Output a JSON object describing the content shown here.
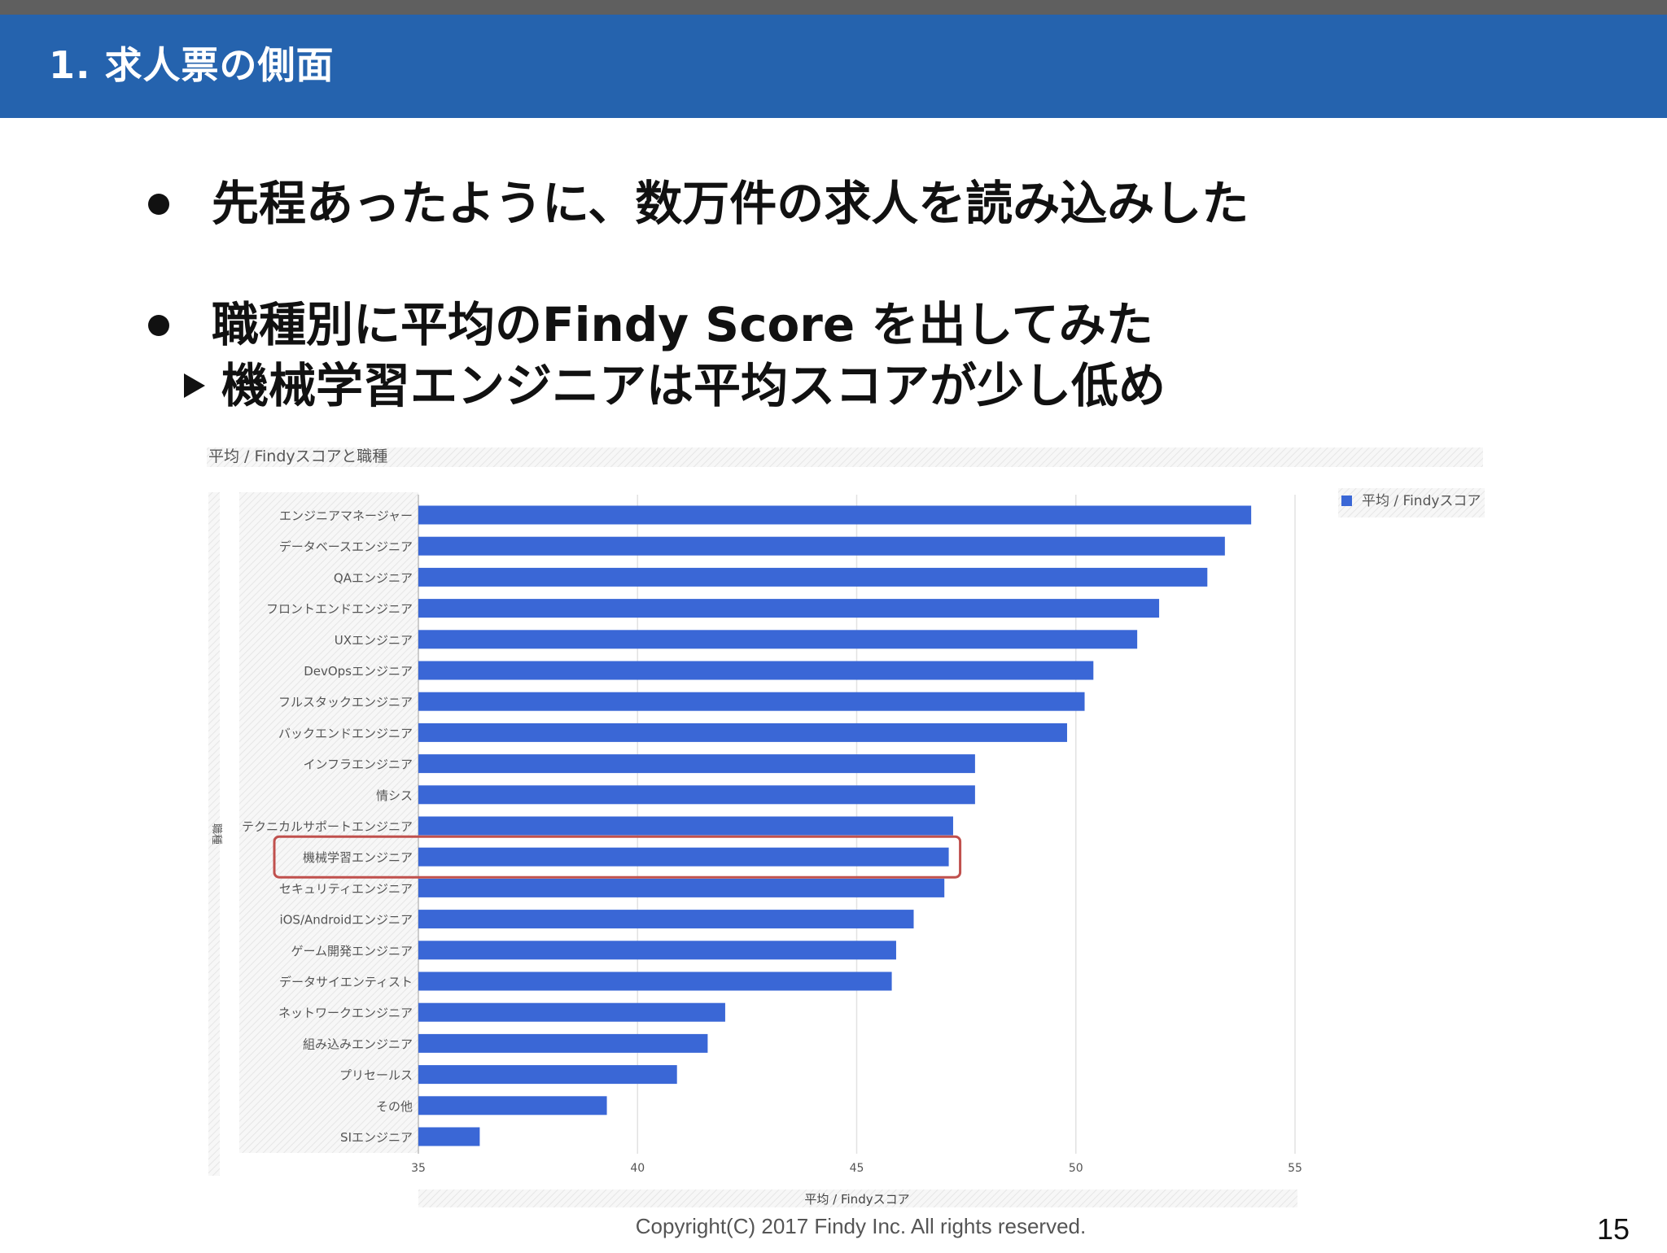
{
  "slide": {
    "title": "1. 求人票の側面",
    "bullets": [
      "先程あったように、数万件の求人を読み込みした",
      "職種別に平均のFindy Score を出してみた"
    ],
    "sub_bullet": "機械学習エンジニアは平均スコアが少し低め",
    "copyright": "Copyright(C) 2017 Findy Inc. All rights reserved.",
    "page_number": "15"
  },
  "chart_data": {
    "type": "bar",
    "orientation": "horizontal",
    "title": "平均 / Findyスコアと職種",
    "xlabel": "平均 / Findyスコア",
    "ylabel": "職種",
    "xlim": [
      35,
      55
    ],
    "xticks": [
      35,
      40,
      45,
      50,
      55
    ],
    "grid": true,
    "legend": {
      "position": "top-right",
      "entries": [
        "平均 / Findyスコア"
      ]
    },
    "bar_color": "#3a67d6",
    "highlight_color": "#c0504d",
    "highlighted_category": "機械学習エンジニア",
    "categories": [
      "エンジニアマネージャー",
      "データベースエンジニア",
      "QAエンジニア",
      "フロントエンドエンジニア",
      "UXエンジニア",
      "DevOpsエンジニア",
      "フルスタックエンジニア",
      "バックエンドエンジニア",
      "インフラエンジニア",
      "情シス",
      "テクニカルサポートエンジニア",
      "機械学習エンジニア",
      "セキュリティエンジニア",
      "iOS/Androidエンジニア",
      "ゲーム開発エンジニア",
      "データサイエンティスト",
      "ネットワークエンジニア",
      "組み込みエンジニア",
      "プリセールス",
      "その他",
      "SIエンジニア"
    ],
    "series": [
      {
        "name": "平均 / Findyスコア",
        "values": [
          54.0,
          53.4,
          53.0,
          51.9,
          51.4,
          50.4,
          50.2,
          49.8,
          47.7,
          47.7,
          47.2,
          47.1,
          47.0,
          46.3,
          45.9,
          45.8,
          42.0,
          41.6,
          40.9,
          39.3,
          36.4
        ]
      }
    ]
  }
}
